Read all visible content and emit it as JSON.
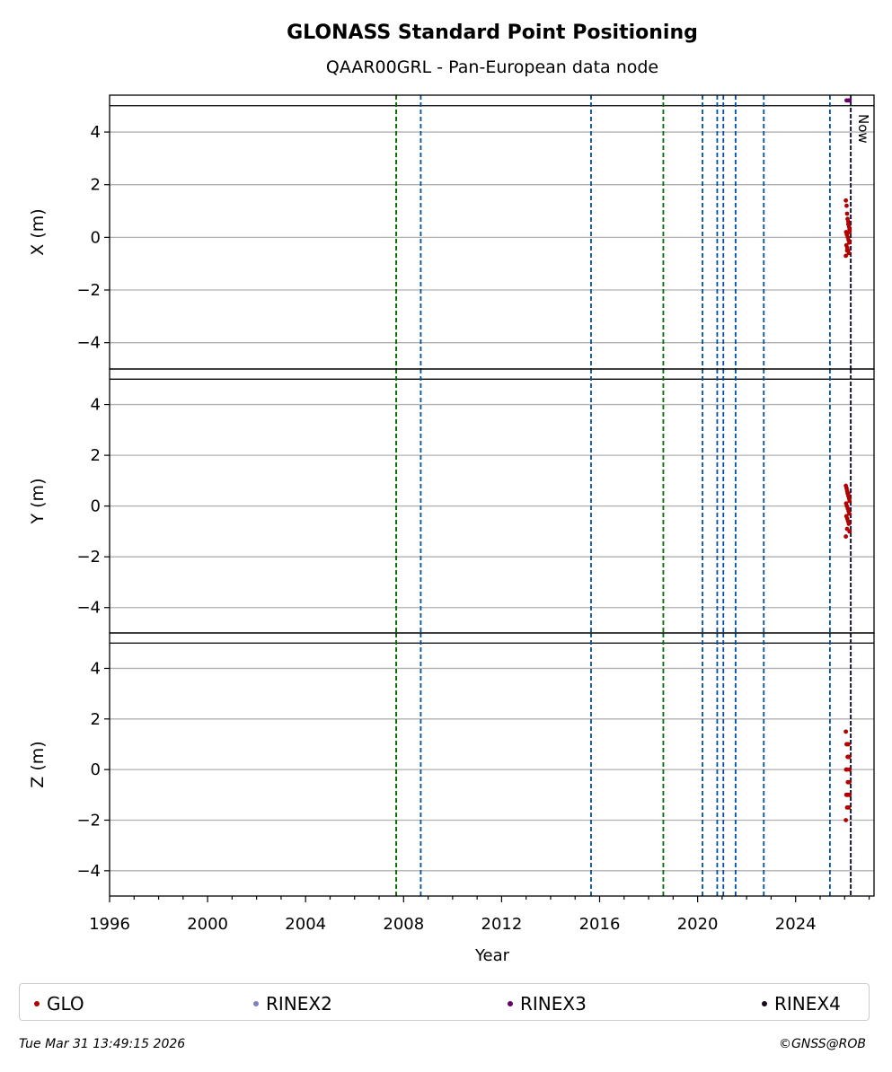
{
  "chart_data": {
    "type": "scatter",
    "title": "GLONASS Standard Point Positioning",
    "subtitle": "QAAR00GRL - Pan-European data node",
    "xlabel": "Year",
    "x_ticks": [
      "1996",
      "2000",
      "2004",
      "2008",
      "2012",
      "2016",
      "2020",
      "2024"
    ],
    "x_tick_values": [
      1996,
      2000,
      2004,
      2008,
      2012,
      2016,
      2020,
      2024
    ],
    "xlim": [
      1996,
      2027.2
    ],
    "ylim": [
      -5,
      5.4
    ],
    "y_ticks": [
      -4,
      -2,
      0,
      2,
      4
    ],
    "grid": "horizontal",
    "now_label": "Now",
    "now_x": 2026.25,
    "colors": {
      "GLO": "#b30000",
      "RINEX2": "#8080c0",
      "RINEX3": "#660066",
      "RINEX4": "#1a0a1a",
      "blue_event": "#0050a0",
      "green_event": "#007000",
      "red_event": "#cc0000",
      "grid": "#b0b0b0"
    },
    "event_lines": [
      {
        "x": 2007.7,
        "color": "red_event"
      },
      {
        "x": 2007.7,
        "color": "green_event"
      },
      {
        "x": 2008.7,
        "color": "blue_event"
      },
      {
        "x": 2015.65,
        "color": "blue_event"
      },
      {
        "x": 2018.6,
        "color": "green_event"
      },
      {
        "x": 2020.2,
        "color": "blue_event"
      },
      {
        "x": 2020.8,
        "color": "blue_event"
      },
      {
        "x": 2021.05,
        "color": "blue_event"
      },
      {
        "x": 2021.55,
        "color": "blue_event"
      },
      {
        "x": 2022.7,
        "color": "blue_event"
      },
      {
        "x": 2025.4,
        "color": "blue_event"
      }
    ],
    "panels": [
      {
        "ylabel": "X (m)",
        "series": [
          {
            "name": "GLO",
            "color": "GLO",
            "x": [
              2026.05,
              2026.08,
              2026.1,
              2026.12,
              2026.15,
              2026.18,
              2026.2,
              2026.06,
              2026.09,
              2026.13,
              2026.16,
              2026.19,
              2026.07,
              2026.11,
              2026.14,
              2026.17,
              2026.05,
              2026.1,
              2026.15,
              2026.2
            ],
            "y": [
              1.4,
              1.2,
              0.9,
              0.7,
              0.5,
              0.4,
              0.3,
              0.2,
              0.1,
              0.0,
              -0.1,
              -0.2,
              -0.3,
              -0.4,
              -0.5,
              -0.6,
              -0.7,
              -0.5,
              0.6,
              0.2
            ]
          },
          {
            "name": "RINEX3",
            "color": "RINEX3",
            "x": [
              2026.08,
              2026.15,
              2026.2
            ],
            "y": [
              5.2,
              5.2,
              5.2
            ]
          }
        ]
      },
      {
        "ylabel": "Y (m)",
        "series": [
          {
            "name": "GLO",
            "color": "GLO",
            "x": [
              2026.05,
              2026.08,
              2026.1,
              2026.12,
              2026.15,
              2026.18,
              2026.2,
              2026.06,
              2026.09,
              2026.13,
              2026.16,
              2026.19,
              2026.07,
              2026.11,
              2026.14,
              2026.17,
              2026.05,
              2026.1,
              2026.15,
              2026.2
            ],
            "y": [
              0.8,
              0.7,
              0.6,
              0.5,
              0.4,
              0.3,
              0.2,
              0.1,
              0.0,
              -0.1,
              -0.2,
              -0.3,
              -0.4,
              -0.5,
              -0.6,
              -0.7,
              -1.2,
              -0.9,
              0.5,
              -1.0
            ]
          }
        ]
      },
      {
        "ylabel": "Z (m)",
        "series": [
          {
            "name": "GLO",
            "color": "GLO",
            "x": [
              2026.05,
              2026.08,
              2026.1,
              2026.12,
              2026.15,
              2026.18,
              2026.2,
              2026.06,
              2026.09,
              2026.13,
              2026.16,
              2026.19,
              2026.07,
              2026.11,
              2026.14,
              2026.17,
              2026.05,
              2026.1,
              2026.15,
              2026.2
            ],
            "y": [
              1.5,
              1.0,
              1.0,
              0.5,
              0.5,
              0.5,
              0.0,
              0.0,
              0.0,
              -0.5,
              -0.5,
              -0.5,
              -1.0,
              -1.0,
              -1.0,
              -1.5,
              -2.0,
              -1.5,
              1.0,
              -1.0
            ]
          }
        ]
      }
    ],
    "legend": {
      "placement": "bottom",
      "entries": [
        {
          "label": "GLO",
          "color": "GLO"
        },
        {
          "label": "RINEX2",
          "color": "RINEX2"
        },
        {
          "label": "RINEX3",
          "color": "RINEX3"
        },
        {
          "label": "RINEX4",
          "color": "RINEX4"
        }
      ]
    }
  },
  "footer": {
    "timestamp": "Tue Mar 31 13:49:15 2026",
    "copyright": "©GNSS@ROB"
  }
}
